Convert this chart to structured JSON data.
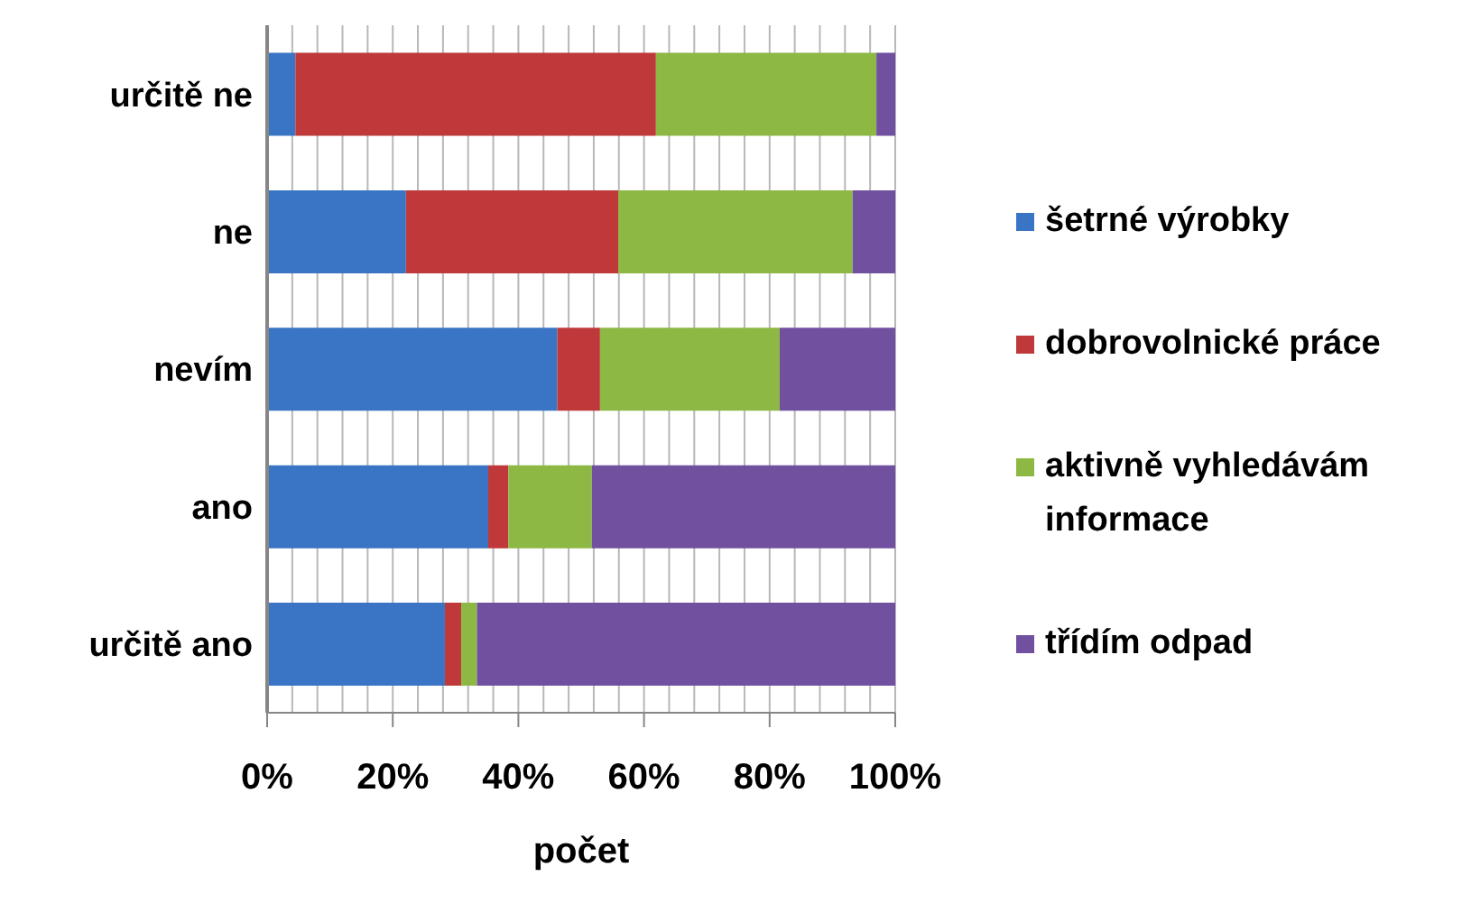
{
  "chart_data": {
    "type": "bar",
    "orientation": "horizontal",
    "stacked": true,
    "xlabel": "počet",
    "categories": [
      "určitě ne",
      "ne",
      "nevím",
      "ano",
      "určitě ano"
    ],
    "series": [
      {
        "name": "šetrné výrobky",
        "color": "#3a74c4",
        "values": [
          4.5,
          22.1,
          46.2,
          35.2,
          28.3
        ]
      },
      {
        "name": "dobrovolnické práce",
        "color": "#c0393a",
        "values": [
          57.4,
          33.8,
          6.8,
          3.2,
          2.6
        ]
      },
      {
        "name": "aktivně vyhledávám informace",
        "color": "#8db843",
        "values": [
          35.1,
          37.3,
          28.6,
          13.3,
          2.5
        ]
      },
      {
        "name": "třídím odpad",
        "color": "#7150a0",
        "values": [
          3.0,
          6.8,
          18.4,
          48.3,
          66.6
        ]
      }
    ],
    "xlim": [
      0,
      100
    ],
    "xticks": [
      {
        "value": 0,
        "label": "0%"
      },
      {
        "value": 4,
        "label": null
      },
      {
        "value": 8,
        "label": null
      },
      {
        "value": 12,
        "label": null
      },
      {
        "value": 16,
        "label": null
      },
      {
        "value": 20,
        "label": "20%"
      },
      {
        "value": 24,
        "label": null
      },
      {
        "value": 28,
        "label": null
      },
      {
        "value": 32,
        "label": null
      },
      {
        "value": 36,
        "label": null
      },
      {
        "value": 40,
        "label": "40%"
      },
      {
        "value": 44,
        "label": null
      },
      {
        "value": 48,
        "label": null
      },
      {
        "value": 52,
        "label": null
      },
      {
        "value": 56,
        "label": null
      },
      {
        "value": 60,
        "label": "60%"
      },
      {
        "value": 64,
        "label": null
      },
      {
        "value": 68,
        "label": null
      },
      {
        "value": 72,
        "label": null
      },
      {
        "value": 76,
        "label": null
      },
      {
        "value": 80,
        "label": "80%"
      },
      {
        "value": 84,
        "label": null
      },
      {
        "value": 88,
        "label": null
      },
      {
        "value": 92,
        "label": null
      },
      {
        "value": 96,
        "label": null
      },
      {
        "value": 100,
        "label": "100%"
      }
    ],
    "grid": "x",
    "legend": "right"
  }
}
